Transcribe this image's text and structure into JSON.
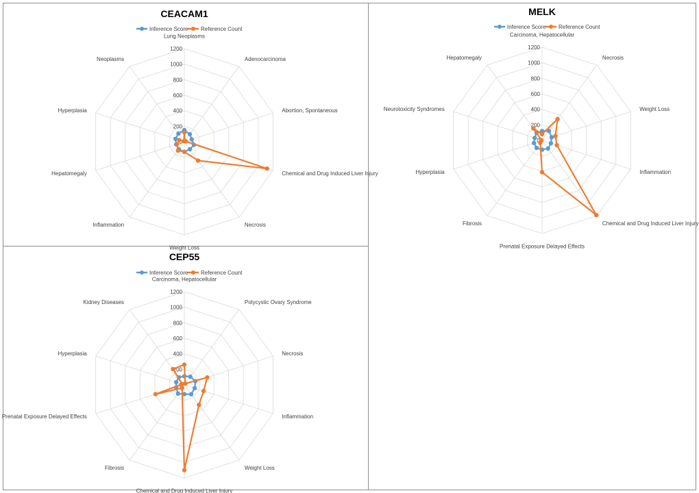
{
  "colors": {
    "inference": "#5B9BD5",
    "reference": "#ED7D31"
  },
  "chart_data": [
    {
      "type": "radar",
      "title": "CEACAM1",
      "legend": [
        "Inference Score",
        "Reference Count"
      ],
      "legend_position": "top",
      "rmax": 1200,
      "ticks": [
        "1200",
        "1000",
        "800",
        "600",
        "400",
        "200",
        "0"
      ],
      "tick_values": [
        1200,
        1000,
        800,
        600,
        400,
        200,
        0
      ],
      "categories": [
        "Lung Neoplasms",
        "Adenocarcinoma",
        "Abortion, Spontaneous",
        "Chemical and Drug Induced Liver Injury",
        "Necrosis",
        "Weight Loss",
        "Inflammation",
        "Hepatomegaly",
        "Hyperplasia",
        "Neoplasms"
      ],
      "series": [
        {
          "name": "Inference Score",
          "values": [
            150,
            120,
            100,
            130,
            120,
            130,
            120,
            110,
            120,
            130
          ]
        },
        {
          "name": "Reference Count",
          "values": [
            120,
            10,
            20,
            1120,
            300,
            130,
            140,
            100,
            70,
            10
          ]
        }
      ]
    },
    {
      "type": "radar",
      "title": "MELK",
      "legend": [
        "Inference Score",
        "Reference Count"
      ],
      "legend_position": "top",
      "rmax": 1200,
      "ticks": [
        "1200",
        "1000",
        "800",
        "600",
        "400",
        "200",
        "0"
      ],
      "tick_values": [
        1200,
        1000,
        800,
        600,
        400,
        200,
        0
      ],
      "categories": [
        "Carcinoma, Hepatocellular",
        "Necrosis",
        "Weight Loss",
        "Inflammation",
        "Chemical and Drug Induced Liver Injury",
        "Prenatal Exposure Delayed Effects",
        "Fibrosis",
        "Hyperplasia",
        "Neurotoxicity Syndromes",
        "Hepatomegaly"
      ],
      "series": [
        {
          "name": "Inference Score",
          "values": [
            120,
            150,
            130,
            120,
            130,
            120,
            120,
            110,
            100,
            120
          ]
        },
        {
          "name": "Reference Count",
          "values": [
            80,
            340,
            180,
            200,
            1190,
            410,
            40,
            10,
            10,
            190
          ]
        }
      ]
    },
    {
      "type": "radar",
      "title": "CEP55",
      "legend": [
        "Inference Score",
        "Reference Count"
      ],
      "legend_position": "top",
      "rmax": 1200,
      "ticks": [
        "1200",
        "1000",
        "800",
        "600",
        "400",
        "200",
        "0"
      ],
      "tick_values": [
        1200,
        1000,
        800,
        600,
        400,
        200,
        0
      ],
      "categories": [
        "Carcinoma, Hepatocellular",
        "Polycystic Ovary Syndrome",
        "Necrosis",
        "Inflammation",
        "Weight Loss",
        "Chemical and Drug Induced Liver Injury",
        "Fibrosis",
        "Prenatal Exposure Delayed Effects",
        "Hyperplasia",
        "Kidney Diseases"
      ],
      "series": [
        {
          "name": "Inference Score",
          "values": [
            110,
            130,
            150,
            140,
            150,
            120,
            140,
            110,
            110,
            120
          ]
        },
        {
          "name": "Reference Count",
          "values": [
            260,
            20,
            310,
            260,
            320,
            1100,
            50,
            390,
            30,
            250
          ]
        }
      ]
    }
  ]
}
